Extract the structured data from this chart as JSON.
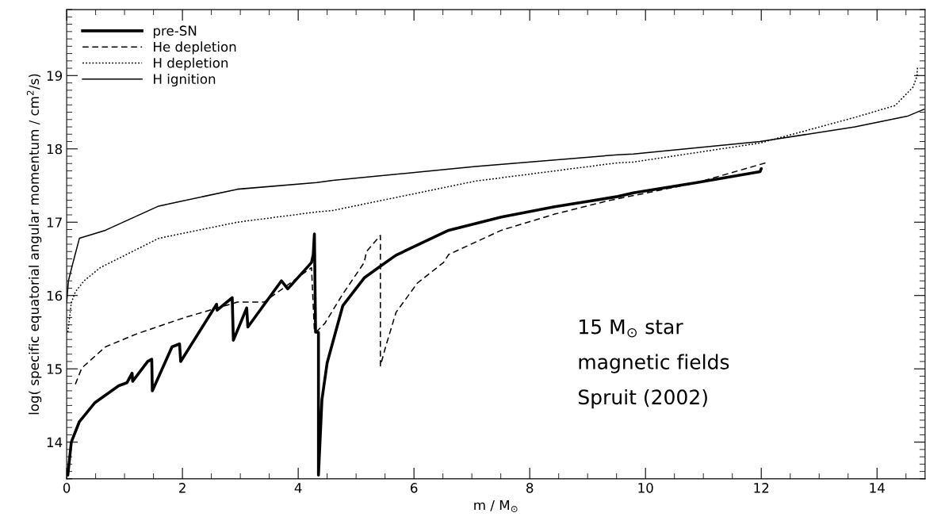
{
  "chart_data": {
    "type": "line",
    "xlabel": "m / M$_{⊙}$",
    "ylabel": "log( specific equatorial angular momentum / cm$^{2}$/s)",
    "xlim": [
      0,
      14.83
    ],
    "ylim": [
      13.5,
      19.9
    ],
    "xticks": [
      0,
      2,
      4,
      6,
      8,
      10,
      12,
      14
    ],
    "yticks": [
      14,
      15,
      16,
      17,
      18,
      19
    ],
    "legend": "top left",
    "grid": false,
    "marker": "none",
    "annotations": [
      "15 M$_{⊙}$ star",
      "magnetic fields",
      "Spruit (2002)"
    ],
    "series": [
      {
        "name": "pre-SN",
        "color": "#000000",
        "line_style": "solid",
        "x": [
          0.02,
          0.08,
          0.22,
          0.49,
          0.9,
          1.04,
          1.13,
          1.14,
          1.4,
          1.47,
          1.48,
          1.82,
          1.95,
          1.97,
          2.59,
          2.6,
          2.86,
          2.88,
          3.11,
          3.13,
          3.71,
          3.82,
          4.23,
          4.26,
          4.28,
          4.3,
          4.35,
          4.35,
          4.41,
          4.5,
          4.6,
          4.77,
          5.14,
          5.42,
          5.69,
          6.6,
          7.51,
          8.43,
          9.52,
          9.79,
          10.89,
          11.98,
          12.0
        ],
        "values": [
          13.55,
          14.0,
          14.28,
          14.54,
          14.77,
          14.81,
          14.94,
          14.83,
          15.1,
          15.13,
          14.7,
          15.3,
          15.34,
          15.1,
          15.88,
          15.8,
          15.97,
          15.39,
          15.83,
          15.57,
          16.2,
          16.09,
          16.45,
          16.56,
          16.84,
          15.5,
          15.5,
          13.55,
          14.58,
          15.08,
          15.37,
          15.86,
          16.24,
          16.4,
          16.55,
          16.89,
          17.07,
          17.21,
          17.35,
          17.4,
          17.54,
          17.69,
          17.73
        ]
      },
      {
        "name": "He depletion",
        "color": "#000000",
        "line_style": "dashed",
        "x": [
          0.15,
          0.26,
          0.67,
          1.22,
          2.04,
          2.95,
          3.41,
          4.23,
          4.28,
          4.32,
          4.46,
          4.77,
          5.14,
          5.18,
          5.3,
          5.42,
          5.42,
          5.51,
          5.69,
          6.06,
          6.51,
          6.6,
          7.51,
          8.43,
          9.34,
          10.89,
          12.08
        ],
        "values": [
          14.79,
          15.01,
          15.3,
          15.48,
          15.7,
          15.91,
          15.91,
          16.38,
          15.51,
          15.51,
          15.62,
          16.02,
          16.45,
          16.6,
          16.71,
          16.82,
          15.04,
          15.3,
          15.77,
          16.17,
          16.45,
          16.56,
          16.89,
          17.11,
          17.29,
          17.54,
          17.81
        ]
      },
      {
        "name": "H depletion",
        "color": "#000000",
        "line_style": "dotted",
        "x": [
          0.02,
          0.08,
          0.15,
          0.3,
          0.58,
          1.59,
          2.95,
          4.32,
          4.6,
          7.06,
          9.52,
          9.79,
          11.98,
          13.62,
          14.31,
          14.62,
          14.69,
          14.7
        ],
        "values": [
          15.5,
          15.9,
          16.05,
          16.2,
          16.38,
          16.78,
          17.0,
          17.14,
          17.16,
          17.56,
          17.81,
          17.82,
          18.08,
          18.43,
          18.59,
          18.84,
          18.99,
          19.12
        ]
      },
      {
        "name": "H ignition",
        "color": "#000000",
        "line_style": "solid",
        "x": [
          0.0,
          0.03,
          0.1,
          0.22,
          0.67,
          1.59,
          2.95,
          4.32,
          4.6,
          7.06,
          9.52,
          9.79,
          11.98,
          13.62,
          14.54,
          14.81
        ],
        "values": [
          15.9,
          16.2,
          16.42,
          16.78,
          16.89,
          17.22,
          17.45,
          17.54,
          17.57,
          17.76,
          17.92,
          17.93,
          18.1,
          18.3,
          18.45,
          18.54
        ]
      }
    ]
  }
}
